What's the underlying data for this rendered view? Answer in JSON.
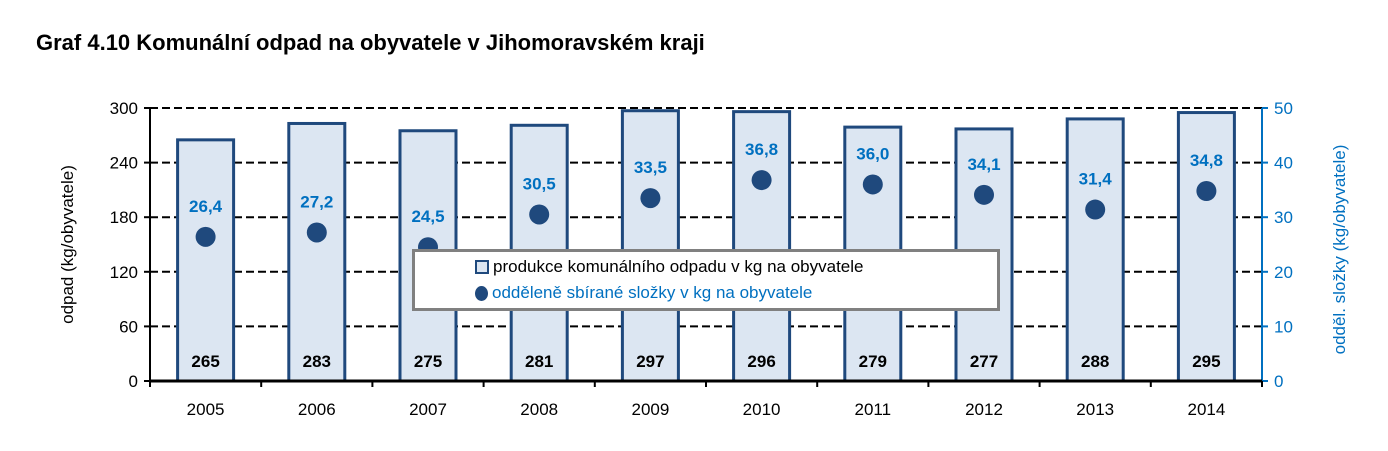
{
  "title": "Graf 4.10 Komunální odpad na obyvatele v Jihomoravském kraji",
  "chart_data": {
    "type": "bar",
    "title": "Graf 4.10 Komunální odpad na obyvatele v Jihomoravském kraji",
    "categories": [
      "2005",
      "2006",
      "2007",
      "2008",
      "2009",
      "2010",
      "2011",
      "2012",
      "2013",
      "2014"
    ],
    "series": [
      {
        "name": "produkce komunálního odpadu v kg na obyvatele",
        "type": "bar",
        "axis": "left",
        "values": [
          265,
          283,
          275,
          281,
          297,
          296,
          279,
          277,
          288,
          295
        ],
        "labels": [
          "265",
          "283",
          "275",
          "281",
          "297",
          "296",
          "279",
          "277",
          "288",
          "295"
        ]
      },
      {
        "name": "odděleně sbírané složky v kg na obyvatele",
        "type": "scatter",
        "axis": "right",
        "values": [
          26.4,
          27.2,
          24.5,
          30.5,
          33.5,
          36.8,
          36.0,
          34.1,
          31.4,
          34.8
        ],
        "labels": [
          "26,4",
          "27,2",
          "24,5",
          "30,5",
          "33,5",
          "36,8",
          "36,0",
          "34,1",
          "31,4",
          "34,8"
        ]
      }
    ],
    "ylabel": "odpad (kg/obyvatele)",
    "y2label": "odděl. složky (kg/obyvatele)",
    "ylim": [
      0,
      300
    ],
    "y2lim": [
      0,
      50
    ],
    "yticks": [
      "0",
      "60",
      "120",
      "180",
      "240",
      "300"
    ],
    "y2ticks": [
      "0",
      "10",
      "20",
      "30",
      "40",
      "50"
    ],
    "grid": true,
    "legend_placement": "center",
    "colors": {
      "bar_fill": "#dce6f2",
      "bar_stroke": "#1f497d",
      "marker": "#1f497d",
      "label_blue": "#0070c0"
    }
  }
}
